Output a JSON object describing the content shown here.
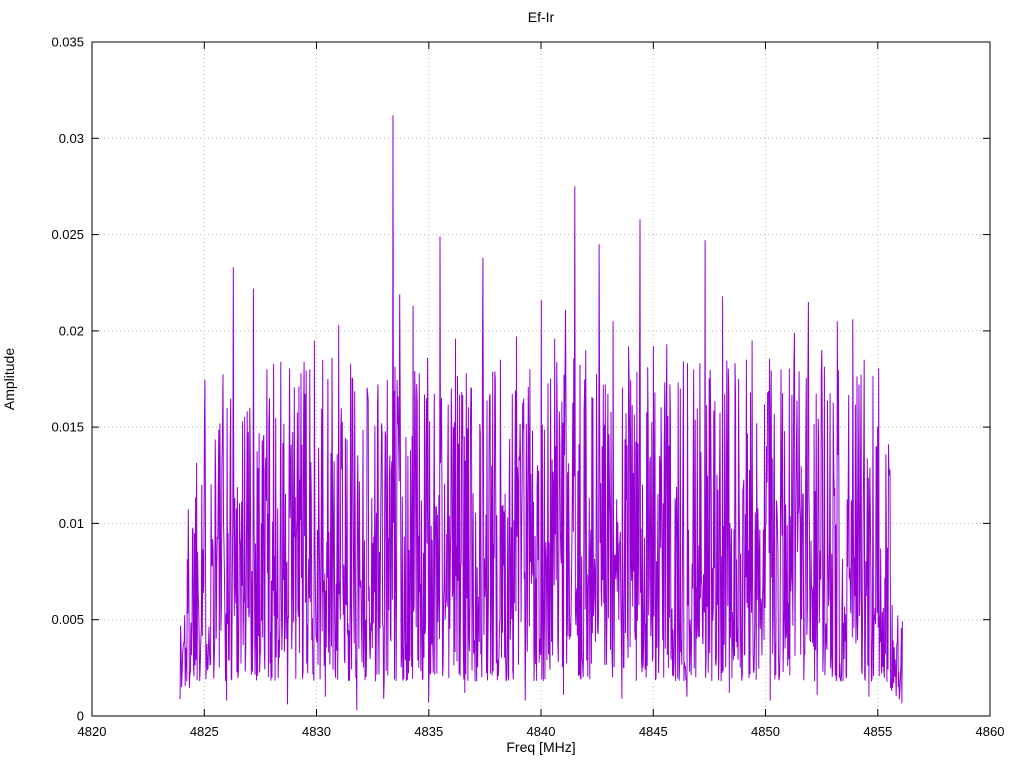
{
  "chart_data": {
    "type": "line",
    "title": "Ef-Ir",
    "xlabel": "Freq [MHz]",
    "ylabel": "Amplitude",
    "xlim": [
      4820,
      4860
    ],
    "ylim": [
      0,
      0.035
    ],
    "xticks": [
      4820,
      4825,
      4830,
      4835,
      4840,
      4845,
      4850,
      4855,
      4860
    ],
    "xtick_labels": [
      "4820",
      "4825",
      "4830",
      "4835",
      "4840",
      "4845",
      "4850",
      "4855",
      "4860"
    ],
    "yticks": [
      0,
      0.005,
      0.01,
      0.015,
      0.02,
      0.025,
      0.03,
      0.035
    ],
    "ytick_labels": [
      "0",
      "0.005",
      "0.01",
      "0.015",
      "0.02",
      "0.025",
      "0.03",
      "0.035"
    ],
    "grid": true,
    "grid_style": "dotted",
    "legend": "none",
    "line_color": "#9400d3",
    "border_color": "#000000",
    "grid_color": "#b8b8b8",
    "signal": {
      "description": "dense noisy amplitude spectrum occupying 4823.9-4856.1 MHz, noise floor ~0.002, typical values 0.004-0.018 with spikes above 0.02",
      "x_start": 4823.9,
      "x_end": 4856.1,
      "points": 1400,
      "seed": 1337,
      "base_min": 0.0018,
      "base_span": 0.0168,
      "bias_exp": 1.6,
      "edge_width": 0.8,
      "edge_floor": 0.3
    },
    "peaks": [
      [
        4824.9,
        0.012
      ],
      [
        4825.5,
        0.0121
      ],
      [
        4826.3,
        0.0233
      ],
      [
        4826.7,
        0.0153
      ],
      [
        4827.2,
        0.0222
      ],
      [
        4827.8,
        0.018
      ],
      [
        4828.4,
        0.0184
      ],
      [
        4829.3,
        0.0178
      ],
      [
        4829.9,
        0.0195
      ],
      [
        4830.5,
        0.0175
      ],
      [
        4831.0,
        0.0203
      ],
      [
        4831.6,
        0.0175
      ],
      [
        4832.3,
        0.0164
      ],
      [
        4832.9,
        0.0152
      ],
      [
        4833.4,
        0.0312
      ],
      [
        4833.7,
        0.0219
      ],
      [
        4834.3,
        0.0213
      ],
      [
        4834.9,
        0.0165
      ],
      [
        4835.5,
        0.0249
      ],
      [
        4836.2,
        0.0196
      ],
      [
        4836.9,
        0.017
      ],
      [
        4837.4,
        0.0238
      ],
      [
        4838.2,
        0.0185
      ],
      [
        4838.9,
        0.0197
      ],
      [
        4839.5,
        0.018
      ],
      [
        4840.0,
        0.0216
      ],
      [
        4840.6,
        0.0196
      ],
      [
        4841.1,
        0.0211
      ],
      [
        4841.5,
        0.0275
      ],
      [
        4842.0,
        0.019
      ],
      [
        4842.6,
        0.0245
      ],
      [
        4843.2,
        0.0205
      ],
      [
        4843.9,
        0.0192
      ],
      [
        4844.4,
        0.0258
      ],
      [
        4845.0,
        0.0192
      ],
      [
        4845.6,
        0.0193
      ],
      [
        4846.2,
        0.017
      ],
      [
        4846.8,
        0.018
      ],
      [
        4847.3,
        0.0247
      ],
      [
        4848.1,
        0.0218
      ],
      [
        4848.8,
        0.0175
      ],
      [
        4849.4,
        0.0195
      ],
      [
        4850.1,
        0.0168
      ],
      [
        4850.7,
        0.018
      ],
      [
        4851.3,
        0.0199
      ],
      [
        4851.9,
        0.0215
      ],
      [
        4852.5,
        0.019
      ],
      [
        4853.2,
        0.0205
      ],
      [
        4853.9,
        0.0206
      ],
      [
        4854.4,
        0.0185
      ],
      [
        4855.0,
        0.015
      ],
      [
        4855.5,
        0.0125
      ]
    ],
    "dips": [
      [
        4824.0,
        0.0015
      ],
      [
        4826.0,
        0.0008
      ],
      [
        4828.7,
        0.0006
      ],
      [
        4830.4,
        0.001
      ],
      [
        4831.8,
        0.0003
      ],
      [
        4833.0,
        0.0009
      ],
      [
        4835.0,
        0.0007
      ],
      [
        4836.6,
        0.0012
      ],
      [
        4839.3,
        0.0008
      ],
      [
        4841.0,
        0.0011
      ],
      [
        4843.6,
        0.0009
      ],
      [
        4846.5,
        0.001
      ],
      [
        4848.4,
        0.0012
      ],
      [
        4850.2,
        0.0008
      ],
      [
        4852.3,
        0.0011
      ],
      [
        4854.6,
        0.001
      ],
      [
        4856.0,
        0.002
      ]
    ]
  }
}
